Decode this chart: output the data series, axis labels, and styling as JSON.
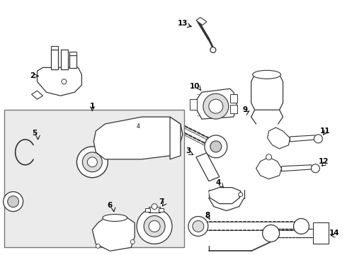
{
  "bg_color": "#ffffff",
  "line_color": "#333333",
  "box_bg": "#e8e8e8",
  "fig_width": 4.9,
  "fig_height": 3.6,
  "dpi": 100
}
